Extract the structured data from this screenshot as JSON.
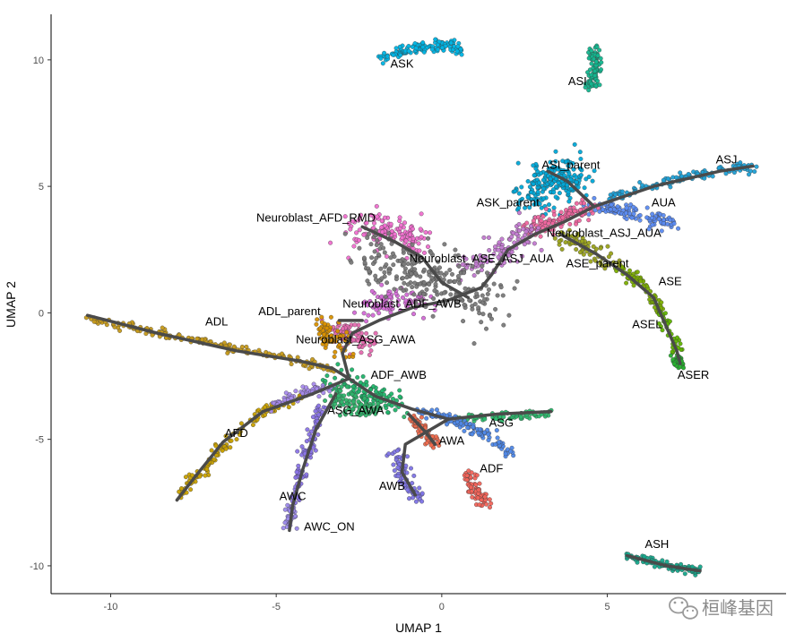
{
  "chart_data": {
    "type": "scatter",
    "title": "",
    "xlabel": "UMAP 1",
    "ylabel": "UMAP 2",
    "xlim": [
      -11.8,
      10.4
    ],
    "ylim": [
      -11.1,
      11.8
    ],
    "x_ticks": [
      -10,
      -5,
      0,
      5
    ],
    "y_ticks": [
      -10,
      -5,
      0,
      5,
      10
    ],
    "grid": false,
    "legend": "none",
    "trajectory_color": "#4a4a4a",
    "labels": [
      {
        "text": "ASK",
        "x": -1.2,
        "y": 9.7
      },
      {
        "text": "ASI",
        "x": 4.1,
        "y": 9.0
      },
      {
        "text": "ASI_parent",
        "x": 3.9,
        "y": 5.7
      },
      {
        "text": "ASJ",
        "x": 8.6,
        "y": 5.9
      },
      {
        "text": "ASK_parent",
        "x": 2.0,
        "y": 4.2
      },
      {
        "text": "AUA",
        "x": 6.7,
        "y": 4.2
      },
      {
        "text": "Neuroblast_AFD_RMD",
        "x": -3.8,
        "y": 3.6
      },
      {
        "text": "Neuroblast_ASJ_AUA",
        "x": 4.9,
        "y": 3.0
      },
      {
        "text": "Neuroblast_ASE_ASJ_AUA",
        "x": 1.2,
        "y": 2.0
      },
      {
        "text": "ASE_parent",
        "x": 4.7,
        "y": 1.8
      },
      {
        "text": "ASE",
        "x": 6.9,
        "y": 1.1
      },
      {
        "text": "Neuroblast_ADF_AWB",
        "x": -1.2,
        "y": 0.2
      },
      {
        "text": "ADL_parent",
        "x": -4.6,
        "y": -0.1
      },
      {
        "text": "ADL",
        "x": -6.8,
        "y": -0.5
      },
      {
        "text": "Neuroblast_ASG_AWA",
        "x": -2.6,
        "y": -1.2
      },
      {
        "text": "ASEL",
        "x": 6.2,
        "y": -0.6
      },
      {
        "text": "ASER",
        "x": 7.6,
        "y": -2.6
      },
      {
        "text": "ADF_AWB",
        "x": -1.3,
        "y": -2.6
      },
      {
        "text": "ASG_AWA",
        "x": -2.6,
        "y": -4.0
      },
      {
        "text": "ASG",
        "x": 1.8,
        "y": -4.5
      },
      {
        "text": "AFD",
        "x": -6.2,
        "y": -4.9
      },
      {
        "text": "AWA",
        "x": 0.3,
        "y": -5.2
      },
      {
        "text": "ADF",
        "x": 1.5,
        "y": -6.3
      },
      {
        "text": "AWB",
        "x": -1.5,
        "y": -7.0
      },
      {
        "text": "AWC",
        "x": -4.5,
        "y": -7.4
      },
      {
        "text": "AWC_ON",
        "x": -3.4,
        "y": -8.6
      },
      {
        "text": "ASH",
        "x": 6.5,
        "y": -9.3
      }
    ],
    "clusters": [
      {
        "name": "ASK",
        "color": "#00b4e4",
        "path": [
          [
            -1.9,
            10.1
          ],
          [
            -0.9,
            10.45
          ],
          [
            0.2,
            10.6
          ],
          [
            0.6,
            10.3
          ]
        ],
        "spread": 0.12,
        "n": 140
      },
      {
        "name": "ASI",
        "color": "#13b68f",
        "path": [
          [
            4.6,
            10.4
          ],
          [
            4.7,
            9.6
          ],
          [
            4.5,
            8.9
          ]
        ],
        "spread": 0.09,
        "n": 90
      },
      {
        "name": "ASI_parent",
        "color": "#00a8d8",
        "path": [
          [
            2.8,
            4.4
          ],
          [
            3.2,
            5.2
          ],
          [
            3.6,
            5.6
          ],
          [
            3.9,
            5.1
          ]
        ],
        "spread": 0.35,
        "n": 220
      },
      {
        "name": "ASJ",
        "color": "#1fa0d6",
        "path": [
          [
            5.0,
            4.5
          ],
          [
            6.7,
            5.2
          ],
          [
            8.6,
            5.7
          ],
          [
            9.4,
            5.8
          ]
        ],
        "spread": 0.1,
        "n": 130
      },
      {
        "name": "AUA",
        "color": "#5b8bf2",
        "path": [
          [
            4.5,
            4.2
          ],
          [
            5.6,
            4.0
          ],
          [
            6.9,
            3.5
          ]
        ],
        "spread": 0.15,
        "n": 110
      },
      {
        "name": "Neuroblast_ASJ_AUA",
        "color": "#f0669f",
        "path": [
          [
            2.6,
            3.3
          ],
          [
            3.6,
            3.7
          ],
          [
            4.5,
            4.2
          ]
        ],
        "spread": 0.2,
        "n": 120
      },
      {
        "name": "Neuroblast_AFD_RMD",
        "color": "#f06fcf",
        "path": [
          [
            -2.6,
            3.3
          ],
          [
            -1.5,
            3.2
          ],
          [
            -0.7,
            2.8
          ]
        ],
        "spread": 0.3,
        "n": 150
      },
      {
        "name": "Neuroblast_ASE_ASJ_AUA",
        "color": "#c27ad0",
        "path": [
          [
            0.8,
            1.8
          ],
          [
            1.8,
            2.4
          ],
          [
            2.6,
            3.2
          ]
        ],
        "spread": 0.3,
        "n": 100
      },
      {
        "name": "ASE_parent",
        "color": "#9aa21a",
        "path": [
          [
            3.6,
            3.0
          ],
          [
            4.6,
            2.4
          ],
          [
            5.3,
            1.8
          ]
        ],
        "spread": 0.18,
        "n": 70
      },
      {
        "name": "ASE",
        "color": "#7cae00",
        "path": [
          [
            5.3,
            1.8
          ],
          [
            6.2,
            1.0
          ],
          [
            6.6,
            0.0
          ]
        ],
        "spread": 0.1,
        "n": 70
      },
      {
        "name": "ASEL",
        "color": "#5fb300",
        "path": [
          [
            6.6,
            0.0
          ],
          [
            6.9,
            -0.8
          ],
          [
            7.1,
            -1.5
          ]
        ],
        "spread": 0.1,
        "n": 40
      },
      {
        "name": "ASER",
        "color": "#27b02e",
        "path": [
          [
            7.1,
            -1.8
          ],
          [
            7.2,
            -2.1
          ]
        ],
        "spread": 0.07,
        "n": 40
      },
      {
        "name": "Neuroblast_ADF_AWB",
        "color": "#d36ad6",
        "path": [
          [
            -2.3,
            0.3
          ],
          [
            -1.4,
            0.5
          ],
          [
            -0.5,
            0.4
          ]
        ],
        "spread": 0.25,
        "n": 90
      },
      {
        "name": "Neuroblast_ASG_AWA",
        "color": "#e56cb0",
        "path": [
          [
            -3.1,
            -0.6
          ],
          [
            -2.6,
            -0.9
          ],
          [
            -2.3,
            -1.3
          ]
        ],
        "spread": 0.22,
        "n": 80
      },
      {
        "name": "ADL_parent",
        "color": "#d89000",
        "path": [
          [
            -3.7,
            -0.4
          ],
          [
            -3.2,
            -0.9
          ],
          [
            -3.0,
            -1.5
          ]
        ],
        "spread": 0.22,
        "n": 70
      },
      {
        "name": "ADL",
        "color": "#c69a1a",
        "path": [
          [
            -10.7,
            -0.2
          ],
          [
            -8.6,
            -0.8
          ],
          [
            -6.2,
            -1.4
          ],
          [
            -4.4,
            -1.9
          ],
          [
            -3.3,
            -2.2
          ]
        ],
        "spread": 0.08,
        "n": 180
      },
      {
        "name": "ADF_AWB",
        "color": "#1fb46a",
        "path": [
          [
            -3.1,
            -2.8
          ],
          [
            -2.3,
            -3.2
          ],
          [
            -1.5,
            -3.5
          ]
        ],
        "spread": 0.28,
        "n": 110
      },
      {
        "name": "ASG_AWA",
        "color": "#2fb36a",
        "path": [
          [
            -3.3,
            -3.2
          ],
          [
            -2.6,
            -3.7
          ],
          [
            -1.9,
            -4.0
          ]
        ],
        "spread": 0.25,
        "n": 90
      },
      {
        "name": "ASG",
        "color": "#2dba6e",
        "path": [
          [
            0.4,
            -4.2
          ],
          [
            1.7,
            -4.1
          ],
          [
            2.8,
            -4.0
          ],
          [
            3.3,
            -3.9
          ]
        ],
        "spread": 0.08,
        "n": 80
      },
      {
        "name": "ASG_branch",
        "color": "#4f88e8",
        "path": [
          [
            -0.6,
            -3.9
          ],
          [
            0.5,
            -4.3
          ],
          [
            1.5,
            -4.9
          ],
          [
            2.1,
            -5.6
          ]
        ],
        "spread": 0.1,
        "n": 120
      },
      {
        "name": "AFD",
        "color": "#c8a000",
        "path": [
          [
            -4.0,
            -3.2
          ],
          [
            -5.4,
            -3.9
          ],
          [
            -6.6,
            -5.2
          ],
          [
            -7.4,
            -6.5
          ],
          [
            -8.0,
            -7.3
          ]
        ],
        "spread": 0.1,
        "n": 120
      },
      {
        "name": "AFD_upper",
        "color": "#a68aeb",
        "path": [
          [
            -3.3,
            -2.9
          ],
          [
            -4.3,
            -3.2
          ],
          [
            -5.2,
            -3.7
          ]
        ],
        "spread": 0.1,
        "n": 70
      },
      {
        "name": "AWC",
        "color": "#8a74e6",
        "path": [
          [
            -3.6,
            -3.7
          ],
          [
            -4.0,
            -5.2
          ],
          [
            -4.3,
            -6.5
          ],
          [
            -4.5,
            -7.6
          ]
        ],
        "spread": 0.1,
        "n": 100
      },
      {
        "name": "AWC_ON",
        "color": "#9c8aeb",
        "path": [
          [
            -4.5,
            -7.6
          ],
          [
            -4.6,
            -8.4
          ]
        ],
        "spread": 0.08,
        "n": 40
      },
      {
        "name": "AWA",
        "color": "#ee6a4d",
        "path": [
          [
            -0.9,
            -4.2
          ],
          [
            -0.5,
            -4.7
          ],
          [
            -0.2,
            -5.2
          ]
        ],
        "spread": 0.1,
        "n": 60
      },
      {
        "name": "ADF",
        "color": "#f2645a",
        "path": [
          [
            0.7,
            -6.3
          ],
          [
            1.0,
            -7.0
          ],
          [
            1.3,
            -7.6
          ]
        ],
        "spread": 0.12,
        "n": 70
      },
      {
        "name": "AWB",
        "color": "#7e74e6",
        "path": [
          [
            -1.3,
            -5.6
          ],
          [
            -1.2,
            -6.6
          ],
          [
            -0.7,
            -7.4
          ]
        ],
        "spread": 0.12,
        "n": 80
      },
      {
        "name": "ASH",
        "color": "#16a88c",
        "path": [
          [
            5.6,
            -9.6
          ],
          [
            6.8,
            -10.0
          ],
          [
            7.8,
            -10.2
          ]
        ],
        "spread": 0.07,
        "n": 110
      },
      {
        "name": "neuroblast_gray",
        "color": "#7a7a7a",
        "path": [
          [
            -2.4,
            2.6
          ],
          [
            -1.2,
            1.6
          ],
          [
            0.0,
            1.2
          ],
          [
            1.2,
            0.9
          ],
          [
            1.3,
            0.1
          ]
        ],
        "spread": 0.5,
        "n": 260
      }
    ],
    "trajectories": [
      [
        [
          -10.7,
          -0.1
        ],
        [
          -8.6,
          -0.8
        ],
        [
          -6.2,
          -1.5
        ],
        [
          -4.3,
          -1.9
        ],
        [
          -3.3,
          -2.2
        ],
        [
          -2.8,
          -2.6
        ]
      ],
      [
        [
          -2.8,
          -2.6
        ],
        [
          -3.0,
          -1.6
        ],
        [
          -2.7,
          -0.8
        ],
        [
          -1.9,
          -0.3
        ],
        [
          -0.9,
          0.2
        ],
        [
          0.2,
          0.5
        ],
        [
          1.2,
          1.0
        ],
        [
          1.5,
          1.5
        ],
        [
          2.0,
          2.5
        ],
        [
          2.8,
          3.1
        ],
        [
          3.7,
          3.6
        ],
        [
          4.6,
          4.2
        ]
      ],
      [
        [
          4.6,
          4.2
        ],
        [
          6.4,
          5.0
        ],
        [
          8.4,
          5.6
        ],
        [
          9.4,
          5.8
        ]
      ],
      [
        [
          4.6,
          4.2
        ],
        [
          3.8,
          5.2
        ],
        [
          3.2,
          5.6
        ]
      ],
      [
        [
          3.6,
          3.1
        ],
        [
          4.7,
          2.3
        ],
        [
          5.6,
          1.5
        ],
        [
          6.4,
          0.6
        ],
        [
          6.8,
          -0.6
        ],
        [
          7.1,
          -1.5
        ],
        [
          7.2,
          -2.0
        ]
      ],
      [
        [
          -2.8,
          -2.6
        ],
        [
          -2.0,
          -3.3
        ],
        [
          -0.9,
          -3.8
        ],
        [
          0.2,
          -4.2
        ],
        [
          1.7,
          -4.0
        ],
        [
          3.3,
          -3.9
        ]
      ],
      [
        [
          -2.8,
          -2.6
        ],
        [
          -3.9,
          -3.2
        ],
        [
          -5.4,
          -3.9
        ],
        [
          -6.6,
          -5.1
        ],
        [
          -7.4,
          -6.4
        ],
        [
          -8.0,
          -7.4
        ]
      ],
      [
        [
          -3.2,
          -3.2
        ],
        [
          -3.8,
          -4.6
        ],
        [
          -4.2,
          -6.2
        ],
        [
          -4.5,
          -7.6
        ],
        [
          -4.6,
          -8.6
        ]
      ],
      [
        [
          -1.0,
          -4.0
        ],
        [
          -0.5,
          -4.7
        ],
        [
          -0.2,
          -5.2
        ]
      ],
      [
        [
          0.2,
          -4.2
        ],
        [
          -1.1,
          -5.2
        ],
        [
          -1.2,
          -6.3
        ],
        [
          -0.8,
          -7.2
        ]
      ],
      [
        [
          5.6,
          -9.6
        ],
        [
          6.8,
          -10.0
        ],
        [
          7.8,
          -10.2
        ]
      ],
      [
        [
          -2.4,
          3.4
        ],
        [
          -1.4,
          2.8
        ],
        [
          -0.6,
          2.2
        ],
        [
          0.0,
          1.2
        ],
        [
          0.8,
          0.6
        ]
      ],
      [
        [
          -3.1,
          -0.3
        ],
        [
          -2.4,
          -0.3
        ]
      ]
    ]
  },
  "watermark": {
    "text": "桓峰基因",
    "icon": "wechat-logo-icon"
  }
}
